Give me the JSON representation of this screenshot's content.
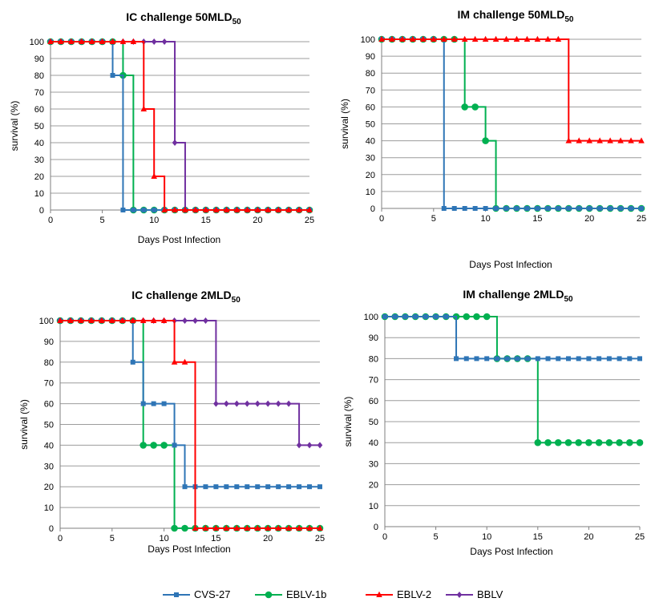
{
  "legend": [
    {
      "name": "CVS-27",
      "color": "#2E75B6",
      "marker": "square"
    },
    {
      "name": "EBLV-1b",
      "color": "#00B050",
      "marker": "circle"
    },
    {
      "name": "EBLV-2",
      "color": "#FF0000",
      "marker": "triangle"
    },
    {
      "name": "BBLV",
      "color": "#7030A0",
      "marker": "diamond"
    }
  ],
  "chart_data": [
    {
      "type": "line",
      "step": true,
      "title": "IC challenge 50MLD",
      "title_sub": "50",
      "xlabel": "Days Post Infection",
      "ylabel": "survival (%)",
      "xlim": [
        0,
        25
      ],
      "ylim": [
        0,
        100
      ],
      "xticks": [
        "0",
        "5",
        "10",
        "15",
        "20",
        "25"
      ],
      "yticks": [
        "0",
        "10",
        "20",
        "30",
        "40",
        "50",
        "60",
        "70",
        "80",
        "90",
        "100"
      ],
      "grid": "horizontal",
      "series": [
        {
          "name": "CVS-27",
          "values": [
            100,
            100,
            100,
            100,
            100,
            100,
            80,
            0,
            0,
            0,
            0,
            0,
            0,
            0,
            0,
            0,
            0,
            0,
            0,
            0,
            0,
            0,
            0,
            0,
            0,
            0
          ]
        },
        {
          "name": "EBLV-1b",
          "values": [
            100,
            100,
            100,
            100,
            100,
            100,
            100,
            80,
            0,
            0,
            0,
            0,
            0,
            0,
            0,
            0,
            0,
            0,
            0,
            0,
            0,
            0,
            0,
            0,
            0,
            0
          ]
        },
        {
          "name": "EBLV-2",
          "values": [
            100,
            100,
            100,
            100,
            100,
            100,
            100,
            100,
            100,
            60,
            20,
            0,
            0,
            0,
            0,
            0,
            0,
            0,
            0,
            0,
            0,
            0,
            0,
            0,
            0,
            0
          ]
        },
        {
          "name": "BBLV",
          "values": [
            100,
            100,
            100,
            100,
            100,
            100,
            100,
            100,
            100,
            100,
            100,
            100,
            40,
            0,
            0,
            0,
            0,
            0,
            0,
            0,
            0,
            0,
            0,
            0,
            0,
            0
          ]
        }
      ]
    },
    {
      "type": "line",
      "step": true,
      "title": "IM challenge 50MLD",
      "title_sub": "50",
      "xlabel": "Days Post Infection",
      "ylabel": "survival (%)",
      "xlim": [
        0,
        25
      ],
      "ylim": [
        0,
        100
      ],
      "xticks": [
        "0",
        "5",
        "10",
        "15",
        "20",
        "25"
      ],
      "yticks": [
        "0",
        "10",
        "20",
        "30",
        "40",
        "50",
        "60",
        "70",
        "80",
        "90",
        "100"
      ],
      "grid": "horizontal",
      "series": [
        {
          "name": "CVS-27",
          "values": [
            100,
            100,
            100,
            100,
            100,
            100,
            0,
            0,
            0,
            0,
            0,
            0,
            0,
            0,
            0,
            0,
            0,
            0,
            0,
            0,
            0,
            0,
            0,
            0,
            0,
            0
          ]
        },
        {
          "name": "EBLV-1b",
          "values": [
            100,
            100,
            100,
            100,
            100,
            100,
            100,
            100,
            60,
            60,
            40,
            0,
            0,
            0,
            0,
            0,
            0,
            0,
            0,
            0,
            0,
            0,
            0,
            0,
            0,
            0
          ]
        },
        {
          "name": "EBLV-2",
          "values": [
            100,
            100,
            100,
            100,
            100,
            100,
            100,
            100,
            100,
            100,
            100,
            100,
            100,
            100,
            100,
            100,
            100,
            100,
            40,
            40,
            40,
            40,
            40,
            40,
            40,
            40
          ]
        }
      ]
    },
    {
      "type": "line",
      "step": true,
      "title": "IC challenge 2MLD",
      "title_sub": "50",
      "xlabel": "Days Post Infection",
      "ylabel": "survival (%)",
      "xlim": [
        0,
        25
      ],
      "ylim": [
        0,
        100
      ],
      "xticks": [
        "0",
        "5",
        "10",
        "15",
        "20",
        "25"
      ],
      "yticks": [
        "0",
        "10",
        "20",
        "30",
        "40",
        "50",
        "60",
        "70",
        "80",
        "90",
        "100"
      ],
      "grid": "horizontal",
      "series": [
        {
          "name": "CVS-27",
          "values": [
            100,
            100,
            100,
            100,
            100,
            100,
            100,
            80,
            60,
            60,
            60,
            40,
            20,
            20,
            20,
            20,
            20,
            20,
            20,
            20,
            20,
            20,
            20,
            20,
            20,
            20
          ]
        },
        {
          "name": "EBLV-1b",
          "values": [
            100,
            100,
            100,
            100,
            100,
            100,
            100,
            100,
            40,
            40,
            40,
            0,
            0,
            0,
            0,
            0,
            0,
            0,
            0,
            0,
            0,
            0,
            0,
            0,
            0,
            0
          ]
        },
        {
          "name": "EBLV-2",
          "values": [
            100,
            100,
            100,
            100,
            100,
            100,
            100,
            100,
            100,
            100,
            100,
            80,
            80,
            0,
            0,
            0,
            0,
            0,
            0,
            0,
            0,
            0,
            0,
            0,
            0,
            0
          ]
        },
        {
          "name": "BBLV",
          "values": [
            100,
            100,
            100,
            100,
            100,
            100,
            100,
            100,
            100,
            100,
            100,
            100,
            100,
            100,
            100,
            60,
            60,
            60,
            60,
            60,
            60,
            60,
            60,
            40,
            40,
            40
          ]
        }
      ]
    },
    {
      "type": "line",
      "step": true,
      "title": "IM challenge 2MLD",
      "title_sub": "50",
      "xlabel": "Days Post Infection",
      "ylabel": "survival (%)",
      "xlim": [
        0,
        25
      ],
      "ylim": [
        0,
        100
      ],
      "xticks": [
        "0",
        "5",
        "10",
        "15",
        "20",
        "25"
      ],
      "yticks": [
        "0",
        "10",
        "20",
        "30",
        "40",
        "50",
        "60",
        "70",
        "80",
        "90",
        "100"
      ],
      "grid": "horizontal",
      "series": [
        {
          "name": "CVS-27",
          "values": [
            100,
            100,
            100,
            100,
            100,
            100,
            100,
            80,
            80,
            80,
            80,
            80,
            80,
            80,
            80,
            80,
            80,
            80,
            80,
            80,
            80,
            80,
            80,
            80,
            80,
            80
          ]
        },
        {
          "name": "EBLV-1b",
          "values": [
            100,
            100,
            100,
            100,
            100,
            100,
            100,
            100,
            100,
            100,
            100,
            80,
            80,
            80,
            80,
            40,
            40,
            40,
            40,
            40,
            40,
            40,
            40,
            40,
            40,
            40
          ]
        }
      ]
    }
  ]
}
